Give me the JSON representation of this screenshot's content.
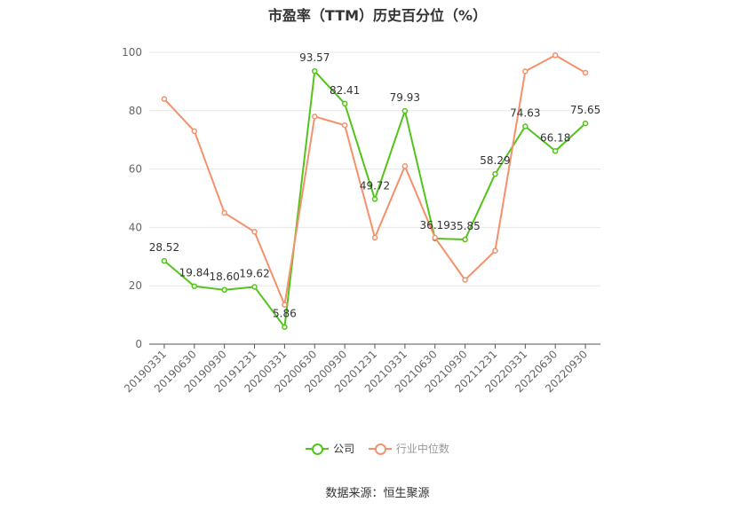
{
  "chart_data": {
    "type": "line",
    "title": "市盈率（TTM）历史百分位（%）",
    "categories": [
      "20190331",
      "20190630",
      "20190930",
      "20191231",
      "20200331",
      "20200630",
      "20200930",
      "20201231",
      "20210331",
      "20210630",
      "20210930",
      "20211231",
      "20220331",
      "20220630",
      "20220930"
    ],
    "series": [
      {
        "name": "公司",
        "color": "#52c41a",
        "show_labels": true,
        "values": [
          28.52,
          19.84,
          18.6,
          19.62,
          5.86,
          93.57,
          82.41,
          49.72,
          79.93,
          36.19,
          35.85,
          58.29,
          74.63,
          66.18,
          75.65
        ]
      },
      {
        "name": "行业中位数",
        "color": "#f4916b",
        "show_labels": false,
        "values": [
          84,
          73,
          45,
          38.5,
          13.5,
          78,
          75,
          36.5,
          61,
          36.5,
          22,
          32,
          93.5,
          99,
          93
        ]
      }
    ],
    "ylim": [
      0,
      100
    ],
    "yticks": [
      0,
      20,
      40,
      60,
      80,
      100
    ],
    "grid": true,
    "legend_position": "bottom"
  },
  "footer": {
    "source": "数据来源：恒生聚源"
  }
}
